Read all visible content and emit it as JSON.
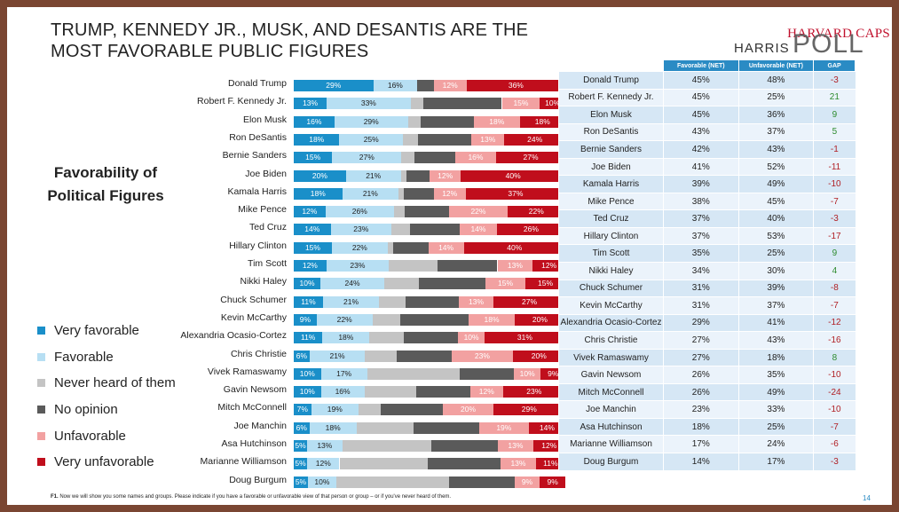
{
  "title_line1": "TRUMP, KENNEDY JR., MUSK, AND DESANTIS ARE THE",
  "title_line2": "MOST FAVORABLE PUBLIC FIGURES",
  "logo": {
    "line1": "HARVARD CAPS",
    "line2": "HARRIS",
    "line3": "POLL"
  },
  "subtitle_line1": "Favorability of",
  "subtitle_line2": "Political Figures",
  "footnote_label": "F1.",
  "footnote": "Now we will show you some names and groups. Please indicate if you have a favorable or unfavorable view of that person or group – or if you've never heard of them.",
  "page_number": "14",
  "colors": {
    "very_favorable": "#1a8fc9",
    "favorable": "#b7dff3",
    "never_heard": "#c4c4c4",
    "no_opinion": "#5a5a5a",
    "unfavorable": "#f2a1a1",
    "very_unfavorable": "#c00e1c",
    "gap_positive": "#2e8b2e",
    "gap_negative": "#b01f24"
  },
  "table": {
    "headers": [
      "",
      "Favorable (NET)",
      "Unfavorable (NET)",
      "GAP"
    ]
  },
  "chart_data": {
    "type": "bar",
    "orientation": "horizontal-stacked-100",
    "title": "Favorability of Political Figures",
    "categories": [
      "Donald Trump",
      "Robert F. Kennedy Jr.",
      "Elon Musk",
      "Ron DeSantis",
      "Bernie Sanders",
      "Joe Biden",
      "Kamala Harris",
      "Mike Pence",
      "Ted Cruz",
      "Hillary Clinton",
      "Tim Scott",
      "Nikki Haley",
      "Chuck Schumer",
      "Kevin McCarthy",
      "Alexandria Ocasio-Cortez",
      "Chris Christie",
      "Vivek Ramaswamy",
      "Gavin Newsom",
      "Mitch McConnell",
      "Joe Manchin",
      "Asa Hutchinson",
      "Marianne Williamson",
      "Doug Burgum"
    ],
    "series": [
      {
        "name": "Very favorable",
        "key": "very_favorable",
        "values": [
          29,
          13,
          16,
          18,
          15,
          20,
          18,
          12,
          14,
          15,
          12,
          10,
          11,
          9,
          11,
          6,
          10,
          10,
          7,
          6,
          5,
          5,
          5
        ]
      },
      {
        "name": "Favorable",
        "key": "favorable",
        "values": [
          16,
          33,
          29,
          25,
          27,
          21,
          21,
          26,
          23,
          22,
          23,
          24,
          21,
          22,
          18,
          21,
          17,
          16,
          19,
          18,
          13,
          12,
          10
        ]
      },
      {
        "name": "Never heard of them",
        "key": "never_heard",
        "values": [
          0,
          5,
          5,
          6,
          5,
          2,
          2,
          4,
          7,
          2,
          18,
          13,
          10,
          11,
          13,
          12,
          34,
          19,
          9,
          22,
          33,
          33,
          40
        ]
      },
      {
        "name": "No opinion",
        "key": "no_opinion",
        "values": [
          6,
          31,
          21,
          21,
          16,
          9,
          11,
          17,
          19,
          14,
          22,
          25,
          20,
          27,
          21,
          21,
          20,
          20,
          25,
          25,
          25,
          27,
          23
        ]
      },
      {
        "name": "Unfavorable",
        "key": "unfavorable",
        "values": [
          12,
          15,
          18,
          13,
          16,
          12,
          12,
          22,
          14,
          14,
          13,
          15,
          13,
          18,
          10,
          23,
          10,
          12,
          20,
          19,
          13,
          13,
          9
        ]
      },
      {
        "name": "Very unfavorable",
        "key": "very_unfavorable",
        "values": [
          36,
          10,
          18,
          24,
          27,
          40,
          37,
          22,
          26,
          40,
          12,
          15,
          27,
          20,
          31,
          20,
          9,
          23,
          29,
          14,
          12,
          11,
          9
        ]
      }
    ],
    "labels": [
      [
        "29%",
        "16%",
        "",
        "",
        "12%",
        "36%"
      ],
      [
        "13%",
        "33%",
        "",
        "",
        "15%",
        "10%"
      ],
      [
        "16%",
        "29%",
        "",
        "",
        "18%",
        "18%"
      ],
      [
        "18%",
        "25%",
        "",
        "",
        "13%",
        "24%"
      ],
      [
        "15%",
        "27%",
        "",
        "",
        "16%",
        "27%"
      ],
      [
        "20%",
        "21%",
        "",
        "",
        "12%",
        "40%"
      ],
      [
        "18%",
        "21%",
        "",
        "",
        "12%",
        "37%"
      ],
      [
        "12%",
        "26%",
        "",
        "",
        "22%",
        "22%"
      ],
      [
        "14%",
        "23%",
        "",
        "",
        "14%",
        "26%"
      ],
      [
        "15%",
        "22%",
        "",
        "",
        "14%",
        "40%"
      ],
      [
        "12%",
        "23%",
        "",
        "",
        "13%",
        "12%"
      ],
      [
        "10%",
        "24%",
        "",
        "",
        "15%",
        "15%"
      ],
      [
        "11%",
        "21%",
        "",
        "",
        "13%",
        "27%"
      ],
      [
        "9%",
        "22%",
        "",
        "",
        "18%",
        "20%"
      ],
      [
        "11%",
        "18%",
        "",
        "",
        "10%",
        "31%"
      ],
      [
        "6%",
        "21%",
        "",
        "",
        "23%",
        "20%"
      ],
      [
        "10%",
        "17%",
        "",
        "",
        "10%",
        "9%"
      ],
      [
        "10%",
        "16%",
        "",
        "",
        "12%",
        "23%"
      ],
      [
        "7%",
        "19%",
        "",
        "",
        "20%",
        "29%"
      ],
      [
        "6%",
        "18%",
        "",
        "",
        "19%",
        "14%"
      ],
      [
        "5%",
        "13%",
        "",
        "",
        "13%",
        "12%"
      ],
      [
        "5%",
        "12%",
        "",
        "",
        "13%",
        "11%"
      ],
      [
        "5%",
        "10%",
        "",
        "",
        "9%",
        "9%"
      ]
    ],
    "favorable_net": [
      "45%",
      "45%",
      "45%",
      "43%",
      "42%",
      "41%",
      "39%",
      "38%",
      "37%",
      "37%",
      "35%",
      "34%",
      "31%",
      "31%",
      "29%",
      "27%",
      "27%",
      "26%",
      "26%",
      "23%",
      "18%",
      "17%",
      "14%"
    ],
    "unfavorable_net": [
      "48%",
      "25%",
      "36%",
      "37%",
      "43%",
      "52%",
      "49%",
      "45%",
      "40%",
      "53%",
      "25%",
      "30%",
      "39%",
      "37%",
      "41%",
      "43%",
      "18%",
      "35%",
      "49%",
      "33%",
      "25%",
      "24%",
      "17%"
    ],
    "gap": [
      "-3",
      "21",
      "9",
      "5",
      "-1",
      "-11",
      "-10",
      "-7",
      "-3",
      "-17",
      "9",
      "4",
      "-8",
      "-7",
      "-12",
      "-16",
      "8",
      "-10",
      "-24",
      "-10",
      "-7",
      "-6",
      "-3"
    ],
    "legend_position": "left"
  }
}
